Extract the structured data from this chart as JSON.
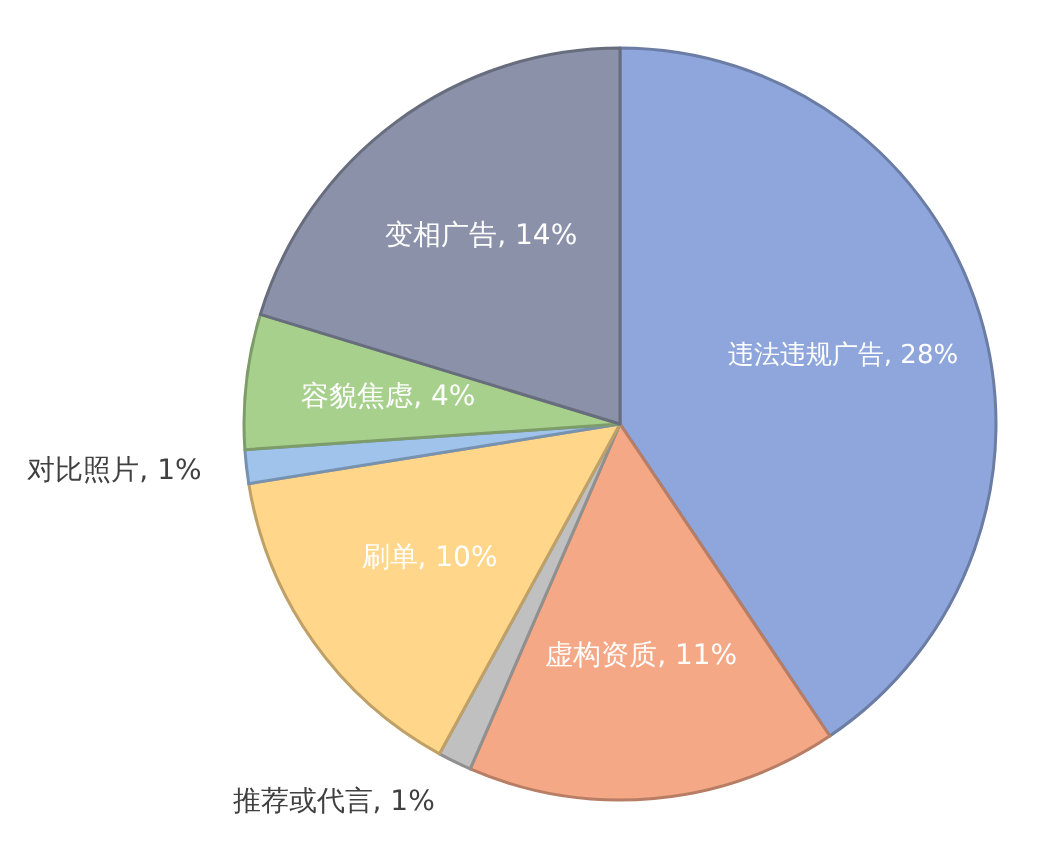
{
  "chart_data": {
    "type": "pie",
    "categories": [
      "违法违规广告",
      "虚构资质",
      "推荐或代言",
      "刷单",
      "对比照片",
      "容貌焦虑",
      "变相广告"
    ],
    "values": [
      28,
      11,
      1,
      10,
      1,
      4,
      14
    ],
    "value_labels": [
      "28%",
      "11%",
      "1%",
      "10%",
      "1%",
      "4%",
      "14%"
    ],
    "colors": [
      "#8ea6db",
      "#f4a886",
      "#c0c0c0",
      "#ffd68a",
      "#9fc3ea",
      "#a6d08c",
      "#8a91a8"
    ]
  }
}
